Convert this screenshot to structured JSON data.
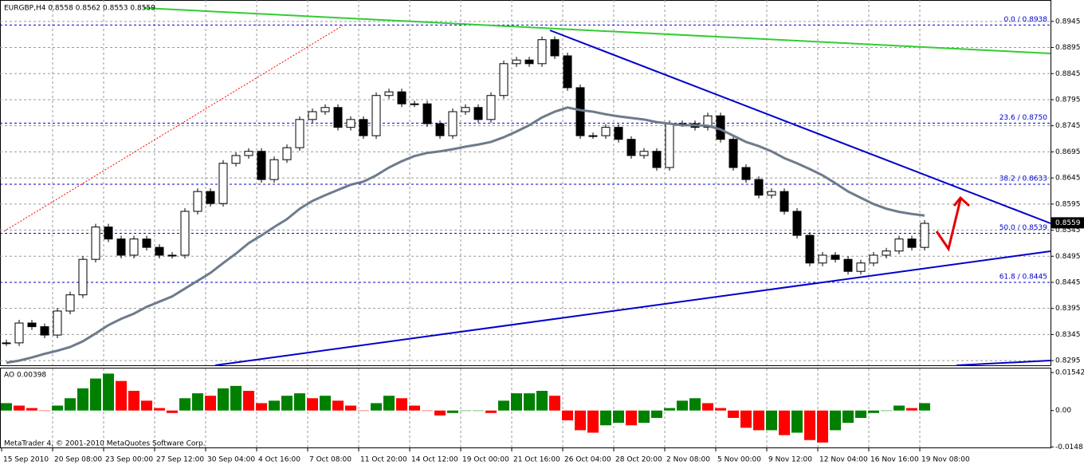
{
  "chart_data": [
    {
      "type": "candlestick",
      "title": "EURGBP,H4  0.8558 0.8562 0.8553 0.8559",
      "x_labels": [
        "15 Sep 2010",
        "20 Sep 08:00",
        "23 Sep 00:00",
        "27 Sep 12:00",
        "30 Sep 04:00",
        "4 Oct 16:00",
        "7 Oct 08:00",
        "11 Oct 20:00",
        "14 Oct 12:00",
        "19 Oct 00:00",
        "21 Oct 16:00",
        "26 Oct 04:00",
        "28 Oct 20:00",
        "2 Nov 08:00",
        "5 Nov 00:00",
        "9 Nov 12:00",
        "12 Nov 04:00",
        "16 Nov 16:00",
        "19 Nov 08:00"
      ],
      "close": [
        0.8329,
        0.8367,
        0.836,
        0.8344,
        0.839,
        0.8421,
        0.8489,
        0.8551,
        0.8528,
        0.8497,
        0.8528,
        0.8512,
        0.8497,
        0.8497,
        0.8581,
        0.8619,
        0.8596,
        0.8673,
        0.8688,
        0.8696,
        0.8642,
        0.868,
        0.8703,
        0.8757,
        0.8772,
        0.878,
        0.8742,
        0.8757,
        0.8726,
        0.8803,
        0.881,
        0.8787,
        0.8787,
        0.8749,
        0.8726,
        0.8772,
        0.878,
        0.8757,
        0.8803,
        0.8864,
        0.8871,
        0.8864,
        0.891,
        0.8879,
        0.8818,
        0.8726,
        0.8726,
        0.8742,
        0.8719,
        0.8688,
        0.8696,
        0.8665,
        0.8749,
        0.8749,
        0.8742,
        0.8764,
        0.8719,
        0.8665,
        0.8642,
        0.8612,
        0.8619,
        0.8581,
        0.8535,
        0.8482,
        0.8497,
        0.8489,
        0.8466,
        0.8482,
        0.8497,
        0.8505,
        0.8528,
        0.8512,
        0.8558
      ],
      "ma": [
        0.8291,
        0.8295,
        0.8301,
        0.8308,
        0.8314,
        0.8321,
        0.8332,
        0.8347,
        0.8363,
        0.8375,
        0.8385,
        0.8398,
        0.8408,
        0.8418,
        0.8433,
        0.8448,
        0.8463,
        0.8482,
        0.85,
        0.852,
        0.8535,
        0.8551,
        0.8566,
        0.8586,
        0.8601,
        0.8612,
        0.8622,
        0.8632,
        0.8638,
        0.865,
        0.8665,
        0.8677,
        0.8687,
        0.8693,
        0.8696,
        0.87,
        0.8705,
        0.8709,
        0.8714,
        0.8723,
        0.8734,
        0.8746,
        0.8761,
        0.8772,
        0.878,
        0.8775,
        0.8772,
        0.8767,
        0.8763,
        0.876,
        0.8757,
        0.8752,
        0.8749,
        0.8746,
        0.8746,
        0.8745,
        0.8738,
        0.8726,
        0.8714,
        0.8706,
        0.8696,
        0.8683,
        0.8673,
        0.8662,
        0.865,
        0.8635,
        0.8619,
        0.8607,
        0.8595,
        0.8586,
        0.858,
        0.8576,
        0.8573
      ],
      "ma_color": "#6e7b8b",
      "ylim": [
        0.8286,
        0.8986
      ],
      "yticks": [
        0.8945,
        0.8895,
        0.8845,
        0.8795,
        0.8745,
        0.8695,
        0.8645,
        0.8595,
        0.8545,
        0.8495,
        0.8445,
        0.8395,
        0.8345,
        0.8295
      ],
      "fib_levels": [
        {
          "value": 0.8938,
          "label": "0.0 / 0.8938"
        },
        {
          "value": 0.875,
          "label": "23.6 / 0.8750"
        },
        {
          "value": 0.8633,
          "label": "38.2 / 0.8633"
        },
        {
          "value": 0.8539,
          "label": "50.0 / 0.8539"
        },
        {
          "value": 0.8445,
          "label": "61.8 / 0.8445"
        }
      ],
      "last_price": 0.8559,
      "grid": true
    },
    {
      "type": "bar",
      "title": "AO 0.00398",
      "values": [
        0.003,
        0.002,
        0.001,
        0.0,
        0.002,
        0.005,
        0.009,
        0.013,
        0.015,
        0.012,
        0.008,
        0.004,
        0.001,
        -0.001,
        0.005,
        0.007,
        0.006,
        0.009,
        0.01,
        0.008,
        0.003,
        0.004,
        0.006,
        0.007,
        0.005,
        0.006,
        0.004,
        0.002,
        0.0,
        0.003,
        0.006,
        0.005,
        0.002,
        0.0,
        -0.002,
        -0.001,
        0.0,
        0.0,
        -0.001,
        0.004,
        0.007,
        0.007,
        0.008,
        0.006,
        -0.004,
        -0.008,
        -0.009,
        -0.006,
        -0.005,
        -0.006,
        -0.005,
        -0.003,
        0.001,
        0.004,
        0.005,
        0.003,
        0.001,
        -0.003,
        -0.007,
        -0.008,
        -0.008,
        -0.01,
        -0.009,
        -0.012,
        -0.013,
        -0.008,
        -0.005,
        -0.003,
        -0.001,
        0.0,
        0.002,
        0.001,
        0.003
      ],
      "up_color": "#008000",
      "down_color": "#ff0000",
      "ylim": [
        -0.015,
        0.0174
      ],
      "yticks": [
        0.01542,
        {
          "value": 0,
          "label": "0.00"
        },
        -0.0148
      ]
    }
  ],
  "footer": "MetaTrader 4, © 2001-2010 MetaQuotes Software Corp."
}
